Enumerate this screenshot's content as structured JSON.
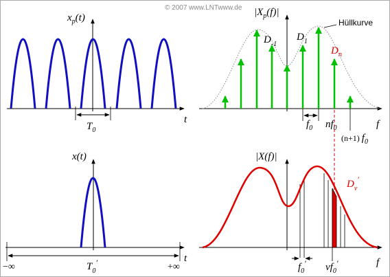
{
  "copyright": "© 2007 www.LNTwww.de",
  "periodic_time": {
    "y_label": {
      "symbol": "x",
      "sub": "p",
      "arg": "(t)"
    },
    "x_label": "t",
    "period": {
      "symbol": "T",
      "sub": "0"
    }
  },
  "periodic_spectrum": {
    "y_label": {
      "pre": "|X",
      "sub": "p",
      "arg": "(f)|"
    },
    "envelope": "Hüllkurve",
    "coeff_minus1": {
      "symbol": "D",
      "sub": "-1"
    },
    "coeff_1": {
      "symbol": "D",
      "sub": "1"
    },
    "coeff_n": {
      "symbol": "D",
      "sub": "n"
    },
    "spacing": {
      "symbol": "f",
      "sub": "0"
    },
    "line_n": {
      "pre": "n",
      "symbol": "f",
      "sub": "0"
    },
    "line_n1": {
      "pre": "(n+1) ",
      "symbol": "f",
      "sub": "0"
    },
    "x_label": "f"
  },
  "single_time": {
    "y_label": {
      "symbol": "x",
      "arg": "(t)"
    },
    "x_label": "t",
    "left": "−∞",
    "right": "+∞",
    "period": {
      "symbol": "T",
      "sub": "0",
      "prime": "′"
    }
  },
  "single_spectrum": {
    "y_label": {
      "pre": "|X",
      "arg": "(f)|"
    },
    "coeff": {
      "symbol": "D",
      "sub": "ν",
      "prime": "′"
    },
    "spacing": {
      "symbol": "f",
      "sub": "0",
      "prime": "′"
    },
    "line_nu": {
      "pre": "ν",
      "symbol": "f",
      "sub": "0",
      "prime": "′"
    },
    "x_label": "f"
  }
}
